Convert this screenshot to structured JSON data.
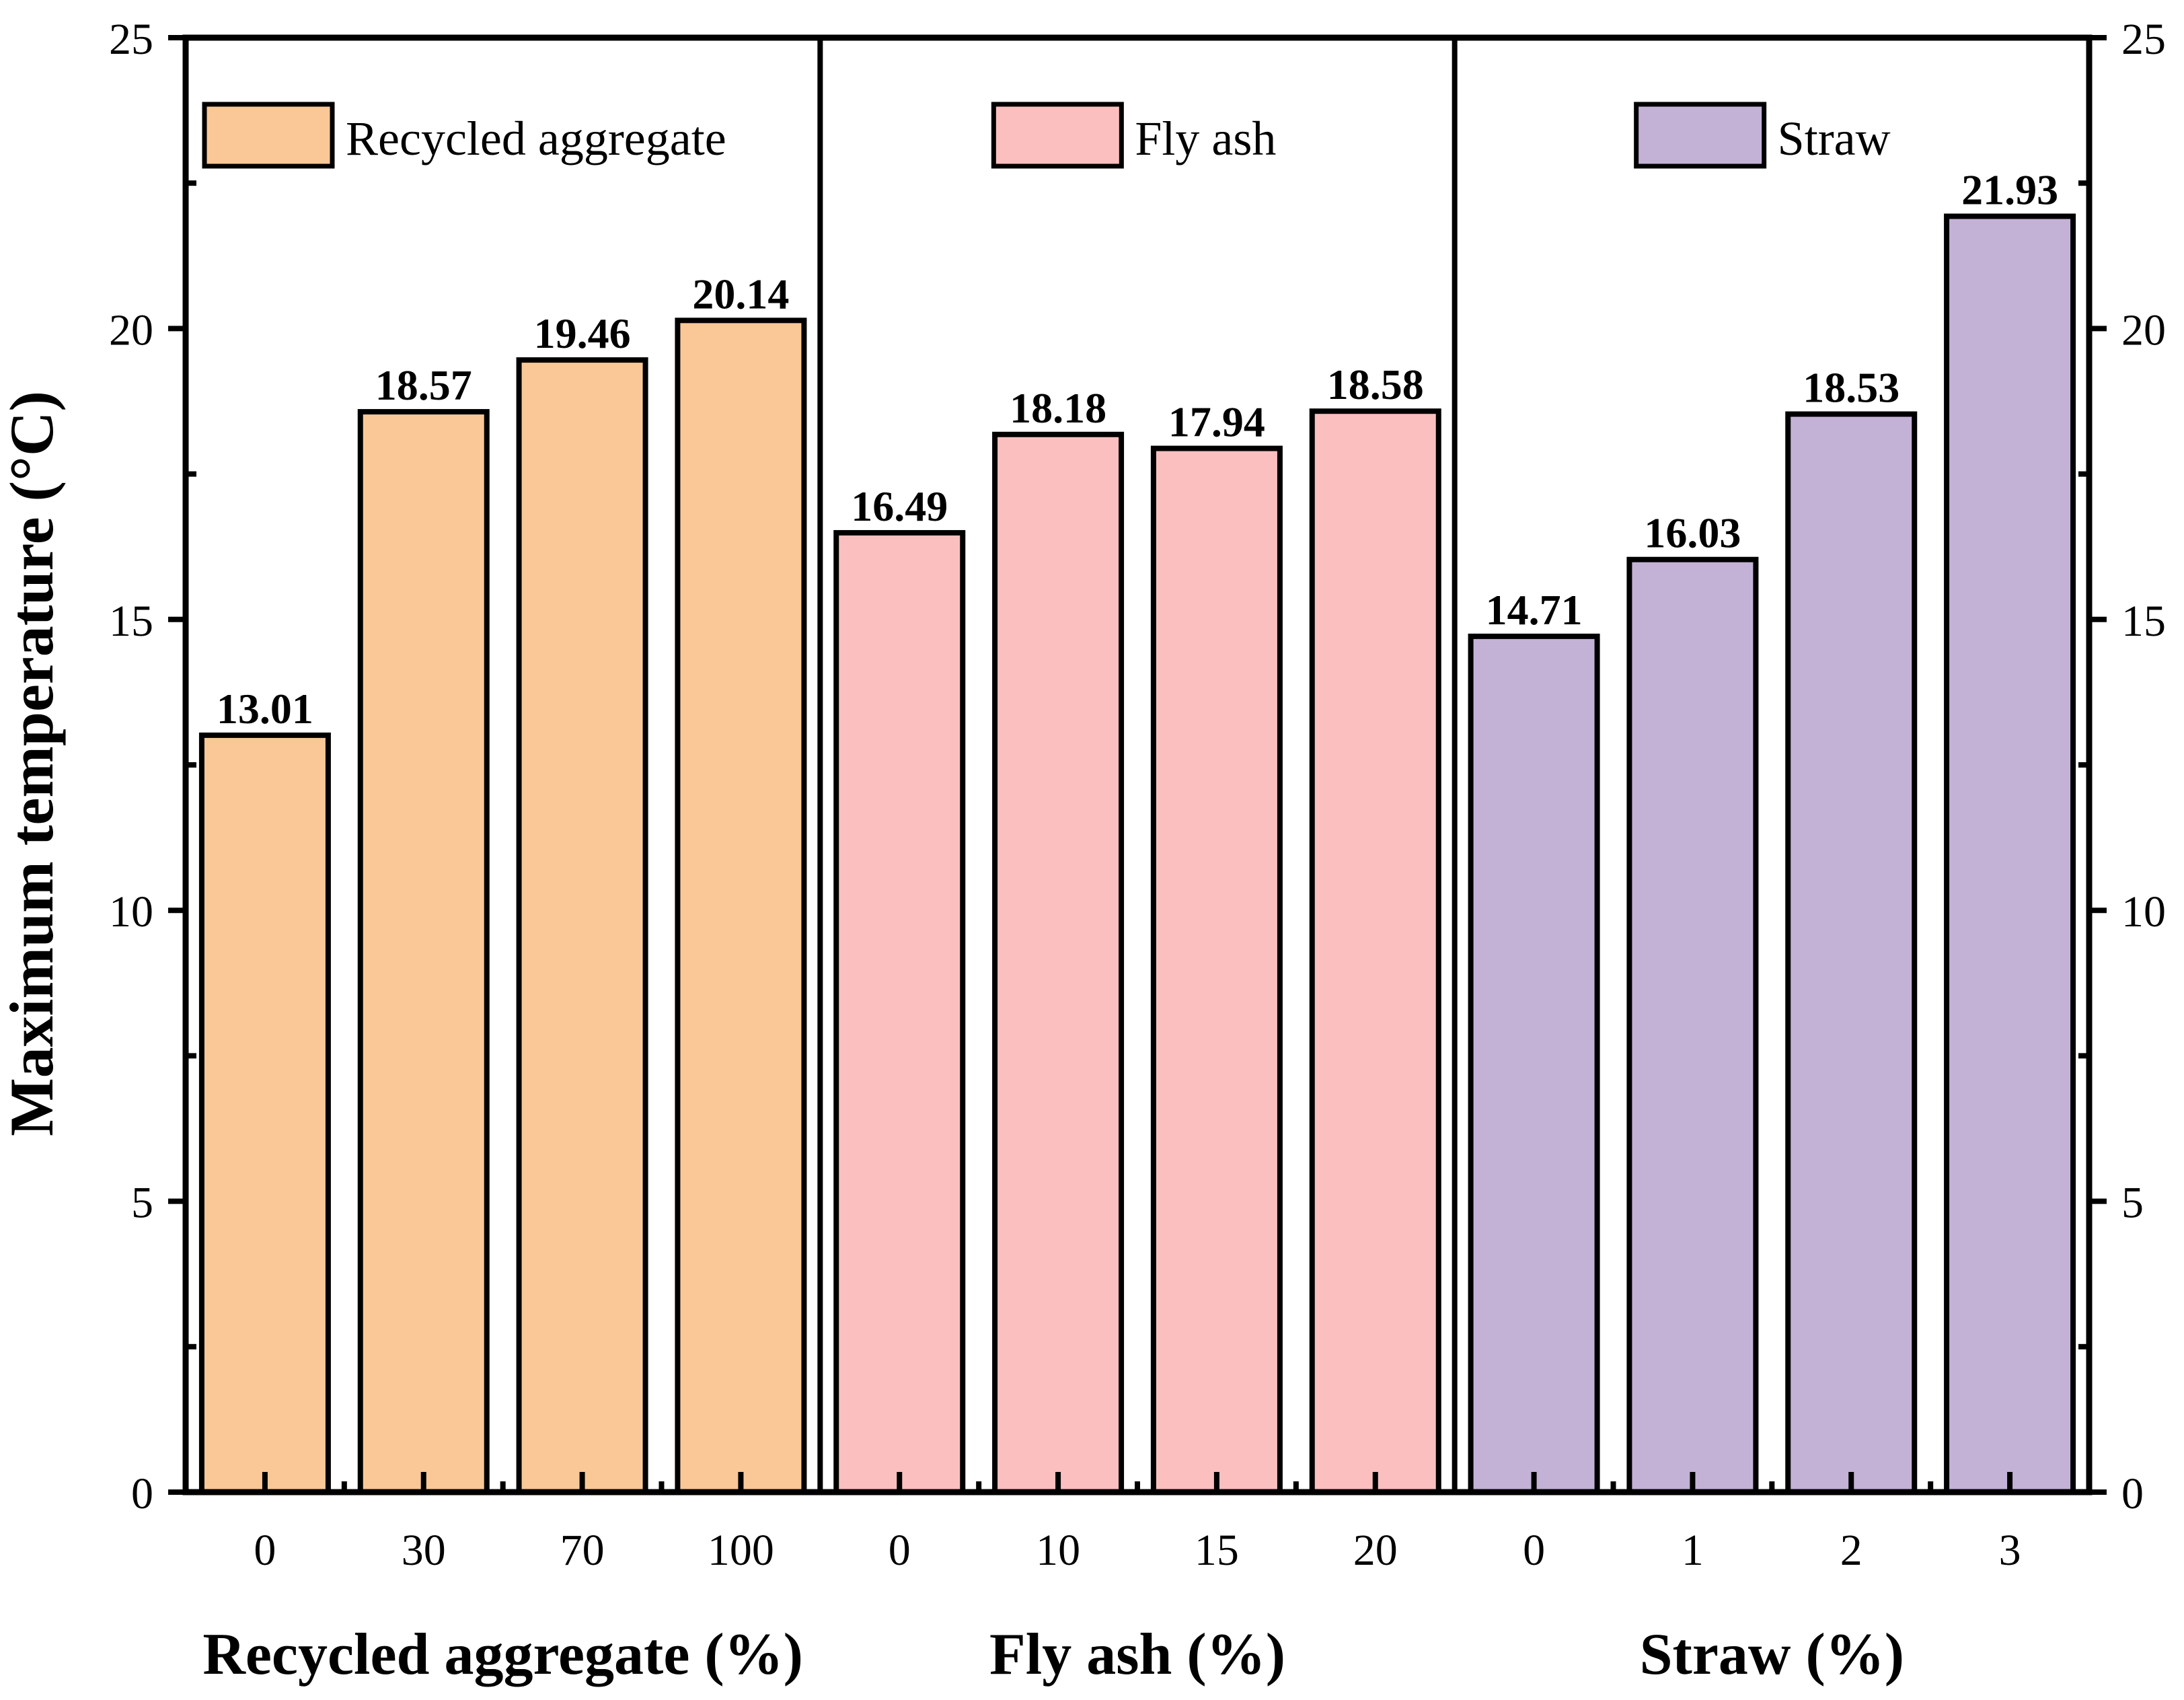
{
  "chart_data": {
    "type": "bar",
    "ylabel": "Maximum temperature (°C)",
    "ylim": [
      0,
      25
    ],
    "yticks": [
      0,
      5,
      10,
      15,
      20,
      25
    ],
    "yticks_label": [
      "0",
      "5",
      "10",
      "15",
      "20",
      "25"
    ],
    "groups": [
      {
        "name": "Recycled aggregate",
        "xlabel": "Recycled aggregate (%)",
        "legend": "Recycled aggregate",
        "color": "#F9C896",
        "categories": [
          "0",
          "30",
          "70",
          "100"
        ],
        "values": [
          13.01,
          18.57,
          19.46,
          20.14
        ],
        "value_labels": [
          "13.01",
          "18.57",
          "19.46",
          "20.14"
        ]
      },
      {
        "name": "Fly ash",
        "xlabel": "Fly ash (%)",
        "legend": "Fly ash",
        "color": "#FBBFBF",
        "categories": [
          "0",
          "10",
          "15",
          "20"
        ],
        "values": [
          16.49,
          18.18,
          17.94,
          18.58
        ],
        "value_labels": [
          "16.49",
          "18.18",
          "17.94",
          "18.58"
        ]
      },
      {
        "name": "Straw",
        "xlabel": "Straw (%)",
        "legend": "Straw",
        "color": "#C3B2D6",
        "categories": [
          "0",
          "1",
          "2",
          "3"
        ],
        "values": [
          14.71,
          16.03,
          18.53,
          21.93
        ],
        "value_labels": [
          "14.71",
          "16.03",
          "18.53",
          "21.93"
        ]
      }
    ]
  }
}
